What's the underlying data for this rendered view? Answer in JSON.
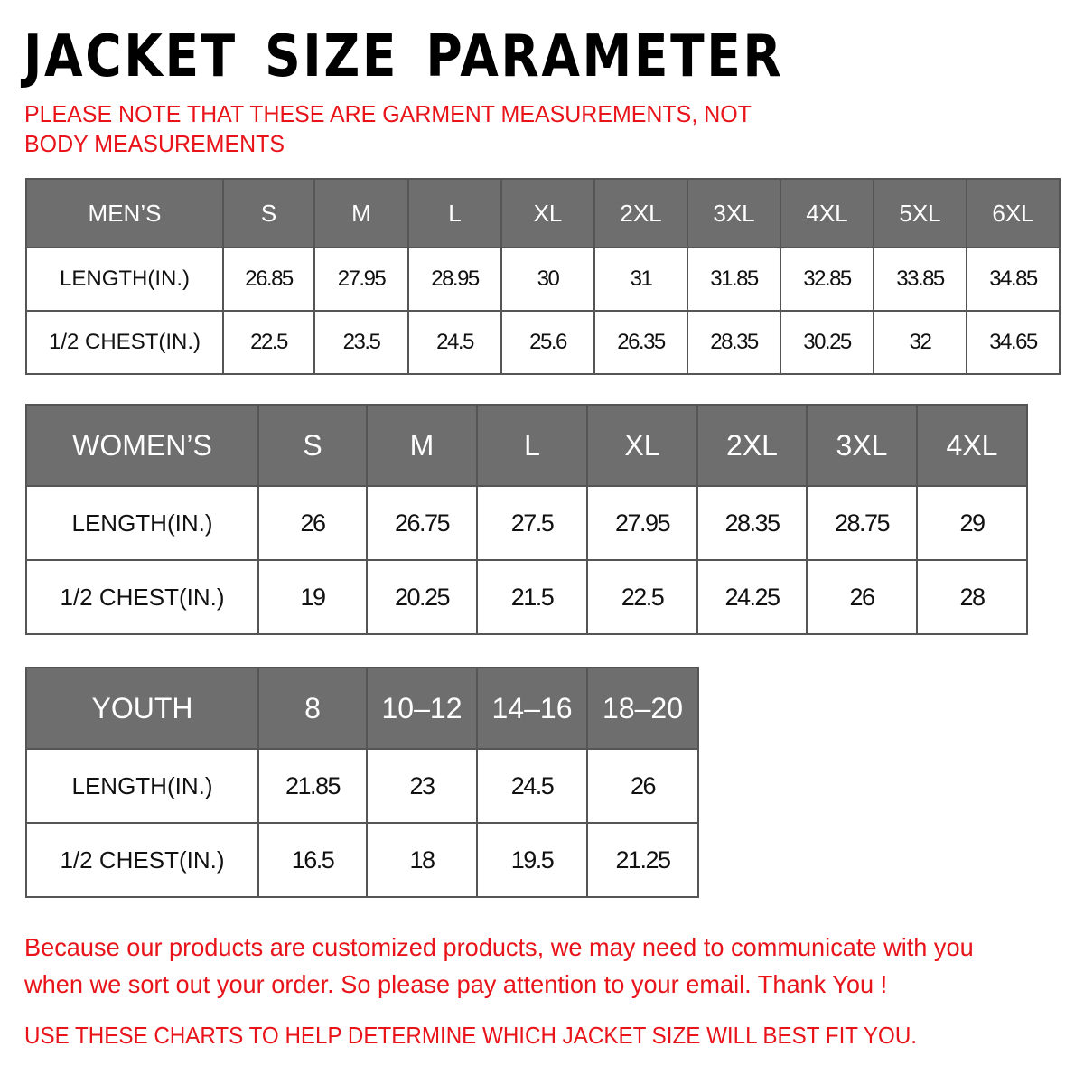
{
  "title": "JACKET  SIZE  PARAMETER",
  "note": "PLEASE NOTE THAT THESE ARE GARMENT MEASUREMENTS, NOT BODY MEASUREMENTS",
  "colors": {
    "header_bg": "#6e6e6e",
    "accent_red": "#e8141a"
  },
  "tables": {
    "men": {
      "header": [
        "MEN’S",
        "S",
        "M",
        "L",
        "XL",
        "2XL",
        "3XL",
        "4XL",
        "5XL",
        "6XL"
      ],
      "rows": [
        [
          "LENGTH(IN.)",
          "26.85",
          "27.95",
          "28.95",
          "30",
          "31",
          "31.85",
          "32.85",
          "33.85",
          "34.85"
        ],
        [
          "1/2 CHEST(IN.)",
          "22.5",
          "23.5",
          "24.5",
          "25.6",
          "26.35",
          "28.35",
          "30.25",
          "32",
          "34.65"
        ]
      ]
    },
    "women": {
      "header": [
        "WOMEN’S",
        "S",
        "M",
        "L",
        "XL",
        "2XL",
        "3XL",
        "4XL"
      ],
      "rows": [
        [
          "LENGTH(IN.)",
          "26",
          "26.75",
          "27.5",
          "27.95",
          "28.35",
          "28.75",
          "29"
        ],
        [
          "1/2 CHEST(IN.)",
          "19",
          "20.25",
          "21.5",
          "22.5",
          "24.25",
          "26",
          "28"
        ]
      ]
    },
    "youth": {
      "header": [
        "YOUTH",
        "8",
        "10–12",
        "14–16",
        "18–20"
      ],
      "rows": [
        [
          "LENGTH(IN.)",
          "21.85",
          "23",
          "24.5",
          "26"
        ],
        [
          "1/2 CHEST(IN.)",
          "16.5",
          "18",
          "19.5",
          "21.25"
        ]
      ]
    }
  },
  "footer": {
    "line1": "Because our products are customized products, we may need to communicate with you",
    "line2": "when we sort out your order. So please pay attention to your email. Thank You !",
    "line3": "USE THESE CHARTS TO HELP DETERMINE WHICH JACKET SIZE WILL BEST FIT YOU."
  }
}
